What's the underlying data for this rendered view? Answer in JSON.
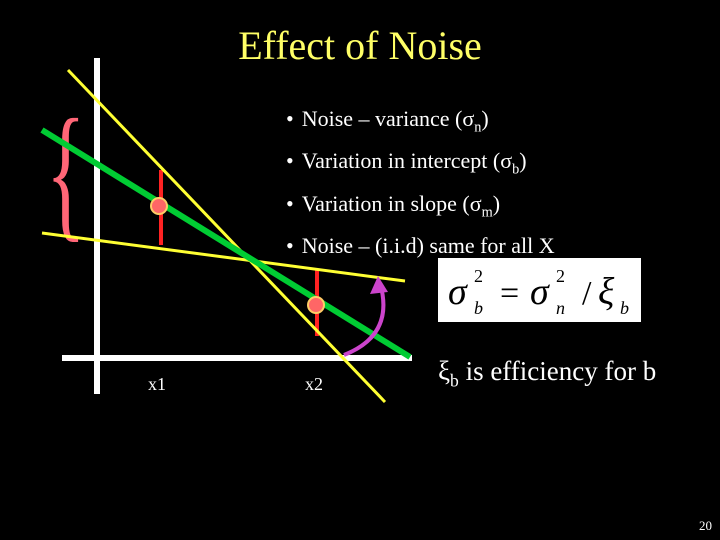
{
  "title": "Effect of Noise",
  "bullets": [
    {
      "prefix": "Noise – variance (",
      "sym": "σ",
      "sub": "n",
      "suffix": ")"
    },
    {
      "prefix": "Variation in intercept (",
      "sym": "σ",
      "sub": "b",
      "suffix": ")"
    },
    {
      "prefix": "Variation in slope (",
      "sym": "σ",
      "sub": "m",
      "suffix": ")"
    },
    {
      "prefix": "Noise – (i.i.d) same for all X",
      "sym": "",
      "sub": "",
      "suffix": ""
    }
  ],
  "bullet_marker": "•",
  "diagram": {
    "x_labels": [
      "x1",
      "x2"
    ],
    "colors": {
      "axes": "#ffffff",
      "yellow_line": "#ffff33",
      "green_line": "#00cc33",
      "red_bar": "#ff2222",
      "point": "#ff6666",
      "arrow": "#cc44cc",
      "brace": "#ff6677"
    },
    "brace_glyph": "{"
  },
  "formula": {
    "lhs": "σ",
    "lhs_sup": "2",
    "lhs_sub": "b",
    "eq": "=",
    "rhs1": "σ",
    "rhs1_sup": "2",
    "rhs1_sub": "n",
    "slash": "/",
    "rhs2": "ξ",
    "rhs2_sub": "b"
  },
  "efficiency": {
    "sym": "ξ",
    "sub": "b",
    "text": " is efficiency for b"
  },
  "slide_number": "20"
}
